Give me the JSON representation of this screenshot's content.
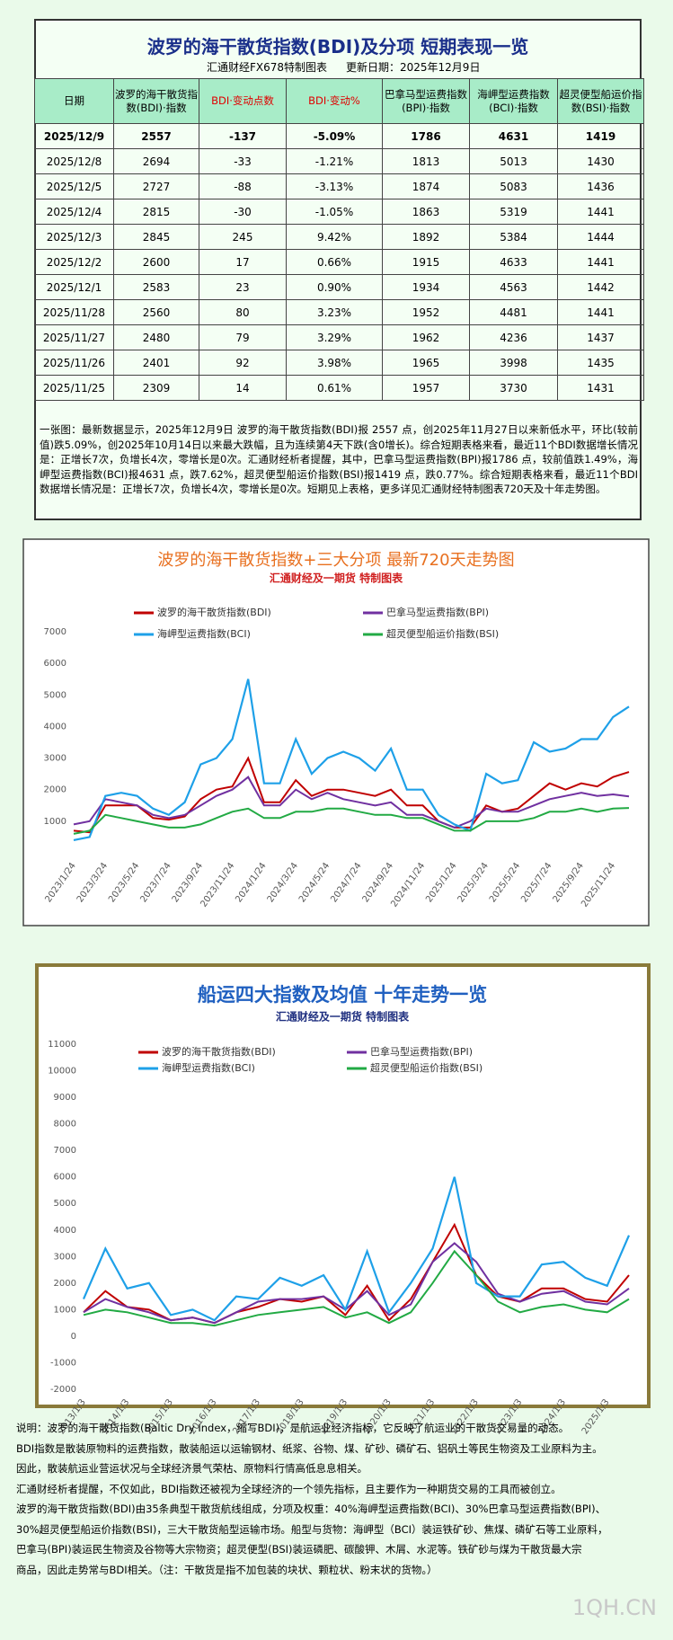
{
  "header": {
    "title": "波罗的海干散货指数(BDI)及分项 短期表现一览",
    "source": "汇通财经FX678特制图表",
    "updated": "更新日期：2025年12月9日"
  },
  "table": {
    "header": [
      "日期",
      "波罗的海干散货指数(BDI)·指数",
      "BDI·变动点数",
      "BDI·变动%",
      "巴拿马型运费指数(BPI)·指数",
      "海岬型运费指数(BCI)·指数",
      "超灵便型船运价指数(BSI)·指数"
    ],
    "rows": [
      [
        "2025/12/9",
        "2557",
        "-137",
        "-5.09%",
        "1786",
        "4631",
        "1419"
      ],
      [
        "2025/12/8",
        "2694",
        "-33",
        "-1.21%",
        "1813",
        "5013",
        "1430"
      ],
      [
        "2025/12/5",
        "2727",
        "-88",
        "-3.13%",
        "1874",
        "5083",
        "1436"
      ],
      [
        "2025/12/4",
        "2815",
        "-30",
        "-1.05%",
        "1863",
        "5319",
        "1441"
      ],
      [
        "2025/12/3",
        "2845",
        "245",
        "9.42%",
        "1892",
        "5384",
        "1444"
      ],
      [
        "2025/12/2",
        "2600",
        "17",
        "0.66%",
        "1915",
        "4633",
        "1441"
      ],
      [
        "2025/12/1",
        "2583",
        "23",
        "0.90%",
        "1934",
        "4563",
        "1442"
      ],
      [
        "2025/11/28",
        "2560",
        "80",
        "3.23%",
        "1952",
        "4481",
        "1441"
      ],
      [
        "2025/11/27",
        "2480",
        "79",
        "3.29%",
        "1962",
        "4236",
        "1437"
      ],
      [
        "2025/11/26",
        "2401",
        "92",
        "3.98%",
        "1965",
        "3998",
        "1435"
      ],
      [
        "2025/11/25",
        "2309",
        "14",
        "0.61%",
        "1957",
        "3730",
        "1431"
      ]
    ]
  },
  "summary": "一张图：最新数据显示，2025年12月9日 波罗的海干散货指数(BDI)报 2557 点，创2025年11月27日以来新低水平，环比(较前值)跌5.09%，创2025年10月14日以来最大跌幅，且为连续第4天下跌(含0增长)。综合短期表格来看，最近11个BDI数据增长情况是：正增长7次，负增长4次，零增长是0次。汇通财经析者提醒，其中，巴拿马型运费指数(BPI)报1786 点，较前值跌1.49%，海岬型运费指数(BCI)报4631 点，跌7.62%，超灵便型船运价指数(BSI)报1419 点，跌0.77%。综合短期表格来看，最近11个BDI数据增长情况是：正增长7次，负增长4次，零增长是0次。短期见上表格，更多详见汇通财经特制图表720天及十年走势图。",
  "chart_data": [
    {
      "type": "line",
      "title": "波罗的海干散货指数+三大分项 最新720天走势图",
      "subtitle": "汇通财经及一期货 特制图表",
      "grid": false,
      "categories": [
        "2023/1/24",
        null,
        "2023/3/24",
        null,
        "2023/5/24",
        null,
        "2023/7/24",
        null,
        "2023/9/24",
        null,
        "2023/11/24",
        null,
        "2024/1/24",
        null,
        "2024/3/24",
        null,
        "2024/5/24",
        null,
        "2024/7/24",
        null,
        "2024/9/24",
        null,
        "2024/11/24",
        null,
        "2025/1/24",
        null,
        "2025/3/24",
        null,
        "2025/5/24",
        null,
        "2025/7/24",
        null,
        "2025/9/24",
        null,
        "2025/11/24",
        null
      ],
      "ylim": [
        0,
        7000
      ],
      "yticks": [
        1000,
        2000,
        3000,
        4000,
        5000,
        6000,
        7000
      ],
      "series": [
        {
          "name": "波罗的海干散货指数(BDI)",
          "color": "#c00000",
          "values": [
            700,
            650,
            1500,
            1500,
            1500,
            1100,
            1050,
            1150,
            1700,
            2000,
            2100,
            3000,
            1600,
            1600,
            2300,
            1800,
            2000,
            2000,
            1900,
            1800,
            2000,
            1500,
            1500,
            1000,
            800,
            800,
            1500,
            1300,
            1400,
            1800,
            2200,
            2000,
            2200,
            2100,
            2400,
            2557
          ]
        },
        {
          "name": "巴拿马型运费指数(BPI)",
          "color": "#7030a0",
          "values": [
            900,
            1000,
            1700,
            1600,
            1500,
            1200,
            1100,
            1200,
            1500,
            1800,
            2000,
            2400,
            1500,
            1500,
            2000,
            1700,
            1900,
            1700,
            1600,
            1500,
            1600,
            1200,
            1200,
            1000,
            800,
            1000,
            1400,
            1300,
            1300,
            1500,
            1700,
            1800,
            1900,
            1800,
            1850,
            1786
          ]
        },
        {
          "name": "海岬型运费指数(BCI)",
          "color": "#1ea0e8",
          "values": [
            400,
            500,
            1800,
            1900,
            1800,
            1400,
            1200,
            1600,
            2800,
            3000,
            3600,
            5500,
            2200,
            2200,
            3600,
            2500,
            3000,
            3200,
            3000,
            2600,
            3300,
            2000,
            2000,
            1200,
            900,
            700,
            2500,
            2200,
            2300,
            3500,
            3200,
            3300,
            3600,
            3600,
            4300,
            4631
          ]
        },
        {
          "name": "超灵便型船运价指数(BSI)",
          "color": "#22aa44",
          "values": [
            600,
            700,
            1200,
            1100,
            1000,
            900,
            800,
            800,
            900,
            1100,
            1300,
            1400,
            1100,
            1100,
            1300,
            1300,
            1400,
            1400,
            1300,
            1200,
            1200,
            1100,
            1100,
            900,
            700,
            700,
            1000,
            1000,
            1000,
            1100,
            1300,
            1300,
            1400,
            1300,
            1400,
            1419
          ]
        }
      ]
    },
    {
      "type": "line",
      "title": "船运四大指数及均值 十年走势一览",
      "subtitle": "汇通财经及一期货 特制图表",
      "grid": false,
      "categories": [
        "2013/1/3",
        null,
        "2014/1/3",
        null,
        "2015/1/3",
        null,
        "2016/1/3",
        null,
        "2017/1/3",
        null,
        "2018/1/3",
        null,
        "2019/1/3",
        null,
        "2020/1/3",
        null,
        "2021/1/3",
        null,
        "2022/1/3",
        null,
        "2023/1/3",
        null,
        "2024/1/3",
        null,
        "2025/1/3",
        null
      ],
      "ylim": [
        -2000,
        11000
      ],
      "yticks": [
        -2000,
        -1000,
        0,
        1000,
        2000,
        3000,
        4000,
        5000,
        6000,
        7000,
        8000,
        9000,
        10000,
        11000
      ],
      "series": [
        {
          "name": "波罗的海干散货指数(BDI)",
          "color": "#c00000",
          "values": [
            900,
            1700,
            1100,
            1000,
            600,
            700,
            500,
            900,
            1100,
            1400,
            1300,
            1500,
            800,
            1900,
            600,
            1400,
            2800,
            4200,
            2300,
            1500,
            1300,
            1800,
            1800,
            1400,
            1300,
            2300
          ]
        },
        {
          "name": "巴拿马型运费指数(BPI)",
          "color": "#7030a0",
          "values": [
            900,
            1400,
            1100,
            900,
            600,
            700,
            500,
            900,
            1300,
            1400,
            1400,
            1500,
            1000,
            1700,
            800,
            1200,
            2800,
            3500,
            2800,
            1600,
            1300,
            1600,
            1700,
            1300,
            1200,
            1800
          ]
        },
        {
          "name": "海岬型运费指数(BCI)",
          "color": "#1ea0e8",
          "values": [
            1400,
            3300,
            1800,
            2000,
            800,
            1000,
            600,
            1500,
            1400,
            2200,
            1900,
            2300,
            1000,
            3200,
            900,
            2000,
            3300,
            6000,
            2000,
            1500,
            1500,
            2700,
            2800,
            2200,
            1900,
            3800
          ]
        },
        {
          "name": "超灵便型船运价指数(BSI)",
          "color": "#22aa44",
          "values": [
            800,
            1000,
            900,
            700,
            500,
            500,
            400,
            600,
            800,
            900,
            1000,
            1100,
            700,
            900,
            500,
            900,
            2000,
            3200,
            2300,
            1300,
            900,
            1100,
            1200,
            1000,
            900,
            1400
          ]
        }
      ]
    }
  ],
  "notes": [
    "说明：波罗的海干散货指数(Baltic Dry Index，缩写BDI)，是航运业经济指标，它反映了航运业的干散货交易量的动态。",
    "BDI指数是散装原物料的运费指数，散装船运以运输钢材、纸浆、谷物、煤、矿砂、磷矿石、铝矾土等民生物资及工业原料为主。",
    "因此，散装航运业营运状况与全球经济景气荣枯、原物料行情高低息息相关。",
    "汇通财经析者提醒，不仅如此，BDI指数还被视为全球经济的一个领先指标，且主要作为一种期货交易的工具而被创立。",
    "波罗的海干散货指数(BDI)由35条典型干散货航线组成，分项及权重：40%海岬型运费指数(BCI)、30%巴拿马型运费指数(BPI)、",
    "30%超灵便型船运价指数(BSI)，三大干散货船型运输市场。船型与货物：海岬型（BCI）装运铁矿砂、焦煤、磷矿石等工业原料，",
    "巴拿马(BPI)装运民生物资及谷物等大宗物资；超灵便型(BSI)装运磷肥、碳酸钾、木屑、水泥等。铁矿砂与煤为干散货最大宗",
    "商品，因此走势常与BDI相关。（注：干散货是指不加包装的块状、颗粒状、粉末状的货物。）"
  ],
  "watermark": "1QH.CN"
}
